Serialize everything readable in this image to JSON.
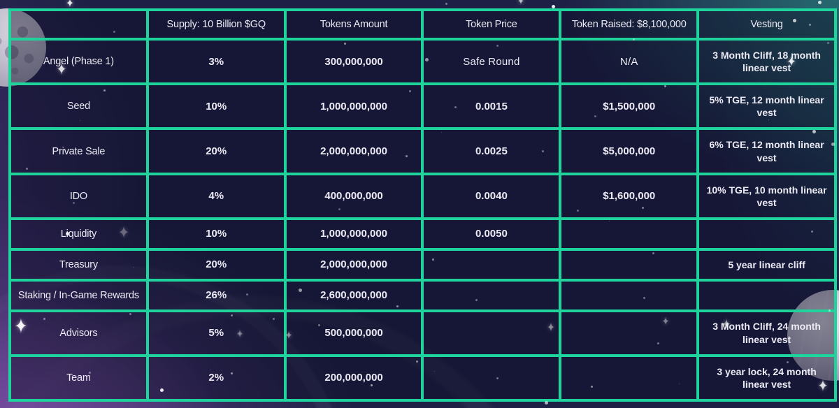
{
  "colors": {
    "border": "#1fd49c",
    "background": "#1e2145",
    "purple_nebula": "#6b4496",
    "teal_glow": "#26706f",
    "text": "#eceaf4"
  },
  "icons": {
    "sparkle": "✦"
  },
  "table": {
    "columns": [
      {
        "header": ""
      },
      {
        "header": "Supply: 10 Billion $GQ"
      },
      {
        "header": "Tokens Amount"
      },
      {
        "header": "Token Price"
      },
      {
        "header": "Token Raised: $8,100,000"
      },
      {
        "header": "Vesting"
      }
    ],
    "rows": [
      {
        "label": "Angel (Phase 1)",
        "supply": "3%",
        "tokens": "300,000,000",
        "price": "Safe Round",
        "raised": "N/A",
        "vesting": "3 Month Cliff, 18 month linear vest"
      },
      {
        "label": "Seed",
        "supply": "10%",
        "tokens": "1,000,000,000",
        "price": "0.0015",
        "raised": "$1,500,000",
        "vesting": "5% TGE, 12 month linear vest"
      },
      {
        "label": "Private Sale",
        "supply": "20%",
        "tokens": "2,000,000,000",
        "price": "0.0025",
        "raised": "$5,000,000",
        "vesting": "6% TGE, 12 month linear vest"
      },
      {
        "label": "IDO",
        "supply": "4%",
        "tokens": "400,000,000",
        "price": "0.0040",
        "raised": "$1,600,000",
        "vesting": "10% TGE, 10  month linear vest"
      },
      {
        "label": "Liquidity",
        "supply": "10%",
        "tokens": "1,000,000,000",
        "price": "0.0050",
        "raised": "",
        "vesting": ""
      },
      {
        "label": "Treasury",
        "supply": "20%",
        "tokens": "2,000,000,000",
        "price": "",
        "raised": "",
        "vesting": "5 year linear cliff"
      },
      {
        "label": "Staking / In-Game Rewards",
        "supply": "26%",
        "tokens": "2,600,000,000",
        "price": "",
        "raised": "",
        "vesting": ""
      },
      {
        "label": "Advisors",
        "supply": "5%",
        "tokens": "500,000,000",
        "price": "",
        "raised": "",
        "vesting": "3 Month Cliff, 24 month linear vest"
      },
      {
        "label": "Team",
        "supply": "2%",
        "tokens": "200,000,000",
        "price": "",
        "raised": "",
        "vesting": "3 year lock, 24 month linear vest"
      }
    ]
  },
  "chart_data": {
    "type": "table",
    "columns": [
      "",
      "Supply: 10 Billion $GQ",
      "Tokens Amount",
      "Token Price",
      "Token Raised: $8,100,000",
      "Vesting"
    ],
    "rows": [
      [
        "Angel (Phase 1)",
        "3%",
        "300,000,000",
        "Safe Round",
        "N/A",
        "3 Month Cliff, 18 month linear vest"
      ],
      [
        "Seed",
        "10%",
        "1,000,000,000",
        "0.0015",
        "$1,500,000",
        "5% TGE, 12 month linear vest"
      ],
      [
        "Private Sale",
        "20%",
        "2,000,000,000",
        "0.0025",
        "$5,000,000",
        "6% TGE, 12 month linear vest"
      ],
      [
        "IDO",
        "4%",
        "400,000,000",
        "0.0040",
        "$1,600,000",
        "10% TGE, 10  month linear vest"
      ],
      [
        "Liquidity",
        "10%",
        "1,000,000,000",
        "0.0050",
        "",
        ""
      ],
      [
        "Treasury",
        "20%",
        "2,000,000,000",
        "",
        "",
        "5 year linear cliff"
      ],
      [
        "Staking / In-Game Rewards",
        "26%",
        "2,600,000,000",
        "",
        "",
        ""
      ],
      [
        "Advisors",
        "5%",
        "500,000,000",
        "",
        "",
        "3 Month Cliff, 24 month linear vest"
      ],
      [
        "Team",
        "2%",
        "200,000,000",
        "",
        "",
        "3 year lock, 24 month linear vest"
      ]
    ]
  }
}
